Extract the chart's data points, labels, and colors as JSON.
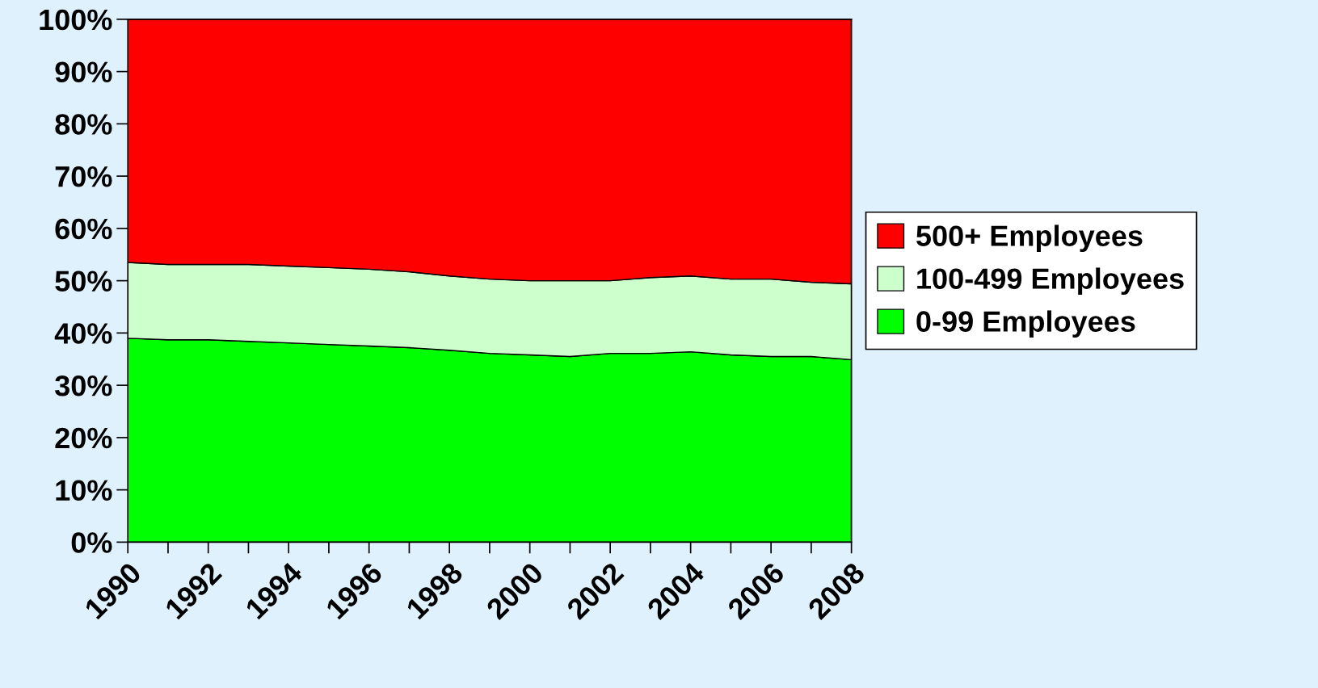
{
  "chart_data": {
    "type": "area",
    "stacked": true,
    "legend": "right",
    "x": [
      1990,
      1991,
      1992,
      1993,
      1994,
      1995,
      1996,
      1997,
      1998,
      1999,
      2000,
      2001,
      2002,
      2003,
      2004,
      2005,
      2006,
      2007,
      2008
    ],
    "xlim": [
      1990,
      2008
    ],
    "xticks": [
      1990,
      {
        "value": 1991,
        "label": null
      },
      1992,
      {
        "value": 1993,
        "label": null
      },
      1994,
      {
        "value": 1995,
        "label": null
      },
      1996,
      {
        "value": 1997,
        "label": null
      },
      1998,
      {
        "value": 1999,
        "label": null
      },
      2000,
      {
        "value": 2001,
        "label": null
      },
      2002,
      {
        "value": 2003,
        "label": null
      },
      2004,
      {
        "value": 2005,
        "label": null
      },
      2006,
      {
        "value": 2007,
        "label": null
      },
      2008
    ],
    "ylim": [
      0,
      100
    ],
    "yticks": [
      {
        "value": 0,
        "label": "0%"
      },
      {
        "value": 10,
        "label": "10%"
      },
      {
        "value": 20,
        "label": "20%"
      },
      {
        "value": 30,
        "label": "30%"
      },
      {
        "value": 40,
        "label": "40%"
      },
      {
        "value": 50,
        "label": "50%"
      },
      {
        "value": 60,
        "label": "60%"
      },
      {
        "value": 70,
        "label": "70%"
      },
      {
        "value": 80,
        "label": "80%"
      },
      {
        "value": 90,
        "label": "90%"
      },
      {
        "value": 100,
        "label": "100%"
      }
    ],
    "series": [
      {
        "name": "0-99 Employees",
        "color": "#00ff00",
        "values": [
          39.0,
          38.7,
          38.7,
          38.4,
          38.1,
          37.8,
          37.5,
          37.2,
          36.7,
          36.1,
          35.8,
          35.5,
          36.1,
          36.1,
          36.4,
          35.8,
          35.5,
          35.5,
          34.9
        ]
      },
      {
        "name": "100-499 Employees",
        "color": "#ccffcc",
        "values": [
          14.5,
          14.4,
          14.4,
          14.7,
          14.7,
          14.7,
          14.7,
          14.5,
          14.2,
          14.2,
          14.2,
          14.5,
          13.9,
          14.5,
          14.5,
          14.5,
          14.8,
          14.2,
          14.5
        ]
      },
      {
        "name": "500+ Employees",
        "color": "#ff0000",
        "values": [
          46.5,
          46.9,
          46.9,
          46.9,
          47.2,
          47.5,
          47.8,
          48.3,
          49.1,
          49.7,
          50.0,
          50.0,
          50.0,
          49.4,
          49.1,
          49.7,
          49.7,
          50.3,
          50.6
        ]
      }
    ]
  }
}
